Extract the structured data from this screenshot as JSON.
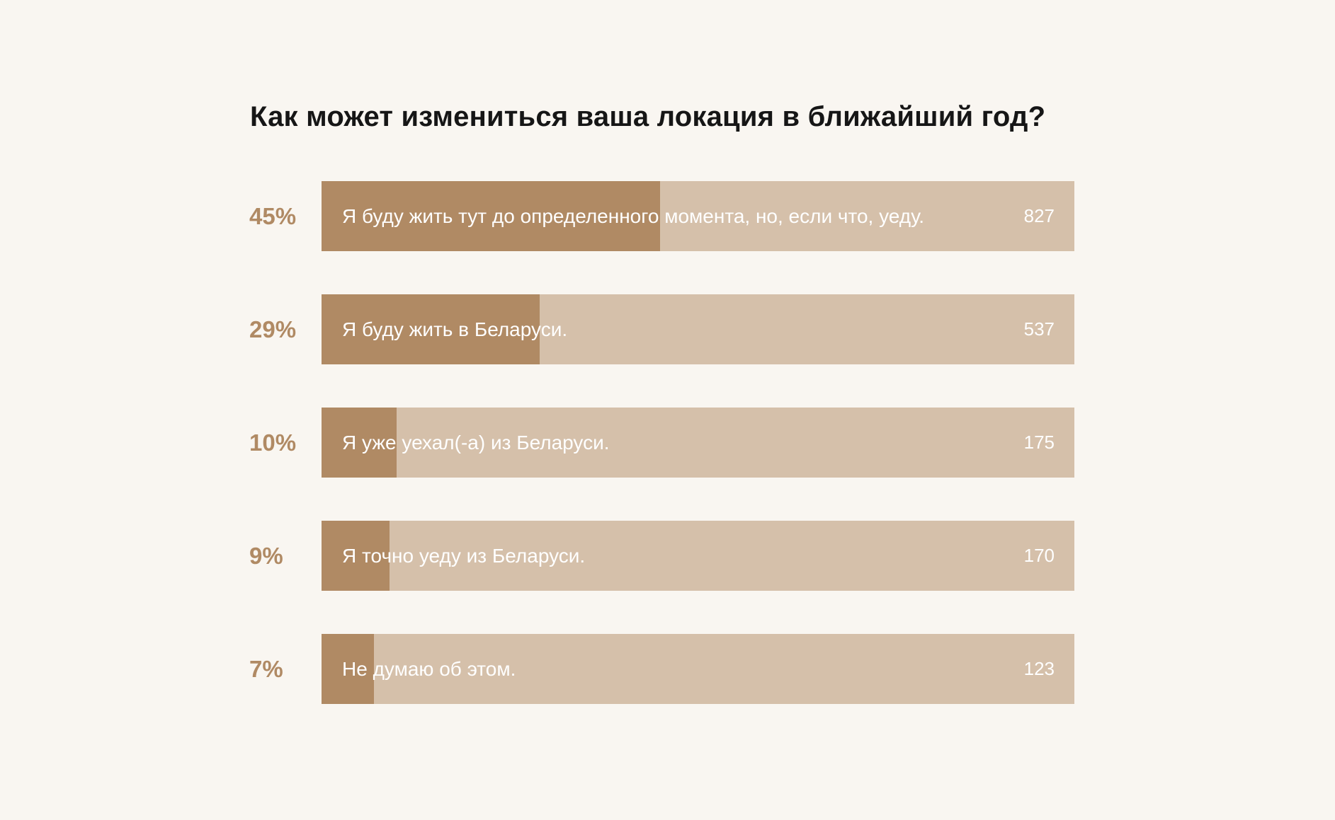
{
  "colors": {
    "background": "#f9f6f1",
    "title": "#161616",
    "percent": "#b08a64",
    "bar_fill": "#b08a64",
    "bar_track": "#d5c0aa",
    "bar_text": "#ffffff"
  },
  "chart_data": {
    "type": "bar",
    "orientation": "horizontal",
    "title": "Как может измениться ваша локация в ближайший год?",
    "xlim": [
      0,
      100
    ],
    "grid": false,
    "legend": "none",
    "categories": [
      "Я буду жить тут до определенного момента, но, если что, уеду.",
      "Я буду жить в Беларуси.",
      "Я уже уехал(-а) из Беларуси.",
      "Я точно уеду из Беларуси.",
      "Не думаю об этом."
    ],
    "values": [
      45,
      29,
      10,
      9,
      7
    ],
    "rows": [
      {
        "percent_label": "45%",
        "percent": 45,
        "label": "Я буду жить тут до определенного момента, но, если что, уеду.",
        "count": "827"
      },
      {
        "percent_label": "29%",
        "percent": 29,
        "label": "Я буду жить в Беларуси.",
        "count": "537"
      },
      {
        "percent_label": "10%",
        "percent": 10,
        "label": "Я уже уехал(-а) из Беларуси.",
        "count": "175"
      },
      {
        "percent_label": "9%",
        "percent": 9,
        "label": "Я точно уеду из Беларуси.",
        "count": "170"
      },
      {
        "percent_label": "7%",
        "percent": 7,
        "label": "Не думаю об этом.",
        "count": "123"
      }
    ]
  }
}
